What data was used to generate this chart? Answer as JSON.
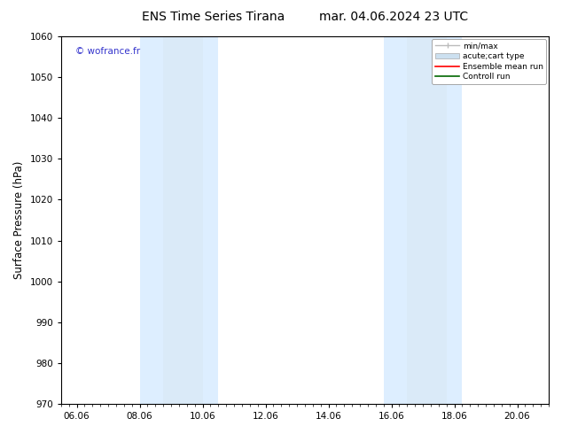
{
  "title_left": "ENS Time Series Tirana",
  "title_right": "mar. 04.06.2024 23 UTC",
  "ylabel": "Surface Pressure (hPa)",
  "ylim": [
    970,
    1060
  ],
  "yticks": [
    970,
    980,
    990,
    1000,
    1010,
    1020,
    1030,
    1040,
    1050,
    1060
  ],
  "xtick_labels": [
    "06.06",
    "08.06",
    "10.06",
    "12.06",
    "14.06",
    "16.06",
    "18.06",
    "20.06"
  ],
  "xtick_positions": [
    0.0,
    2.0,
    4.0,
    6.0,
    8.0,
    10.0,
    12.0,
    14.0
  ],
  "xmin": -0.5,
  "xmax": 15.0,
  "shaded_regions": [
    {
      "xmin": 2.0,
      "xmax": 2.75,
      "color": "#ddeeff"
    },
    {
      "xmin": 2.75,
      "xmax": 4.0,
      "color": "#daeaf8"
    },
    {
      "xmin": 4.0,
      "xmax": 4.5,
      "color": "#ddeeff"
    },
    {
      "xmin": 9.75,
      "xmax": 10.5,
      "color": "#ddeeff"
    },
    {
      "xmin": 10.5,
      "xmax": 11.75,
      "color": "#daeaf8"
    },
    {
      "xmin": 11.75,
      "xmax": 12.25,
      "color": "#ddeeff"
    }
  ],
  "watermark": "© wofrance.fr",
  "watermark_color": "#3333cc",
  "background_color": "#ffffff",
  "legend_items": [
    {
      "label": "min/max",
      "color": "#bbbbbb",
      "lw": 1.0,
      "type": "minmax"
    },
    {
      "label": "acute;cart type",
      "color": "#cce0f0",
      "lw": 8,
      "type": "band"
    },
    {
      "label": "Ensemble mean run",
      "color": "#ff0000",
      "lw": 1.2,
      "type": "line"
    },
    {
      "label": "Controll run",
      "color": "#006600",
      "lw": 1.2,
      "type": "line"
    }
  ],
  "title_fontsize": 10,
  "tick_fontsize": 7.5,
  "ylabel_fontsize": 8.5,
  "legend_fontsize": 6.5
}
